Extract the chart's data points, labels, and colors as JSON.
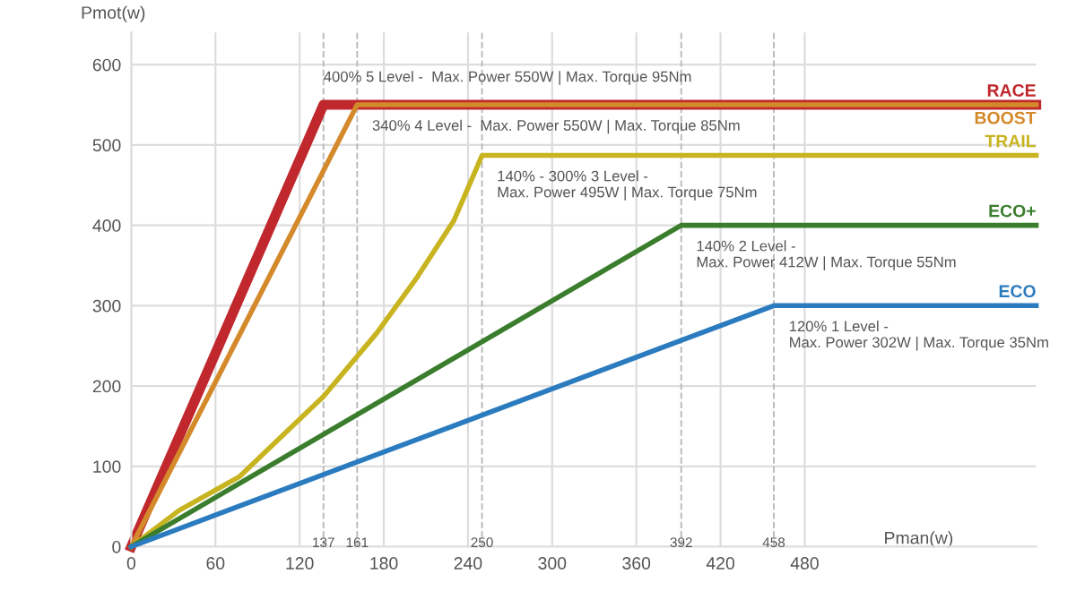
{
  "chart_data": {
    "type": "line",
    "xlabel": "Pman(w)",
    "ylabel": "Pmot(w)",
    "series": [
      {
        "name": "RACE",
        "color": "#c0282d",
        "x": [
          0,
          137,
          645
        ],
        "values": [
          0,
          550,
          550
        ]
      },
      {
        "name": "BOOST",
        "color": "#d4892a",
        "x": [
          0,
          161,
          645
        ],
        "values": [
          0,
          550,
          550
        ]
      },
      {
        "name": "TRAIL",
        "color": "#c8b420",
        "x": [
          0,
          34,
          77,
          137,
          175,
          204,
          230,
          250,
          645
        ],
        "values": [
          0,
          45,
          87,
          187,
          266,
          336,
          406,
          487,
          487
        ]
      },
      {
        "name": "ECO+",
        "color": "#3a7d2c",
        "x": [
          0,
          392,
          645
        ],
        "values": [
          0,
          400,
          400
        ]
      },
      {
        "name": "ECO",
        "color": "#2b7bbf",
        "x": [
          0,
          458,
          645
        ],
        "values": [
          0,
          300,
          300
        ]
      }
    ],
    "xlim": [
      0,
      645
    ],
    "ylim": [
      0,
      640
    ],
    "xticks": [
      0,
      60,
      120,
      180,
      240,
      300,
      360,
      420,
      480
    ],
    "yticks": [
      0,
      100,
      200,
      300,
      400,
      500,
      600
    ],
    "ref_lines": [
      {
        "axis": "x",
        "value": 137,
        "label": "137",
        "color": "#bbbbbb",
        "line_style": "dashed"
      },
      {
        "axis": "x",
        "value": 161,
        "label": "161",
        "color": "#bbbbbb",
        "line_style": "dashed"
      },
      {
        "axis": "x",
        "value": 250,
        "label": "250",
        "color": "#bbbbbb",
        "line_style": "dashed"
      },
      {
        "axis": "x",
        "value": 392,
        "label": "392",
        "color": "#bbbbbb",
        "line_style": "dashed"
      },
      {
        "axis": "x",
        "value": 458,
        "label": "458",
        "color": "#bbbbbb",
        "line_style": "dashed"
      }
    ],
    "annotations": [
      {
        "text": "400% 5 Level -  Max. Power 550W | Max. Torque 95Nm",
        "x": 137,
        "y": 550
      },
      {
        "text": "340% 4 Level -  Max. Power 550W | Max. Torque 85Nm",
        "x": 161,
        "y": 550
      },
      {
        "text": "140% - 300% 3 Level -\nMax. Power 495W | Max. Torque 75Nm",
        "x": 250,
        "y": 487
      },
      {
        "text": "140% 2 Level -\nMax. Power 412W | Max. Torque 55Nm",
        "x": 392,
        "y": 400
      },
      {
        "text": "120% 1 Level -\nMax. Power 302W | Max. Torque 35Nm",
        "x": 458,
        "y": 300
      }
    ],
    "grid": true,
    "legend": false,
    "marker": "none",
    "line_style": "solid"
  }
}
